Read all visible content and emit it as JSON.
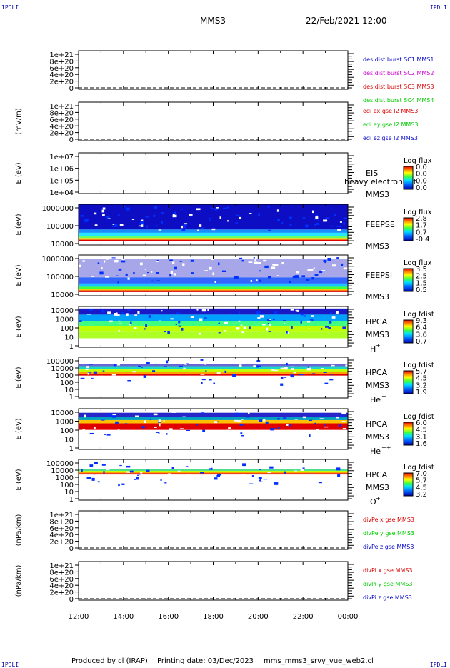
{
  "header": {
    "corner_label": "IPDLI",
    "title": "MMS3",
    "datetime": "22/Feb/2021 12:00"
  },
  "footer": {
    "produced_by": "Produced by cl (IRAP)",
    "printing_date": "Printing date: 03/Dec/2023",
    "script_name": "mms_mms3_srvy_vue_web2.cl"
  },
  "time_axis": {
    "ticks": [
      "12:00",
      "14:00",
      "16:00",
      "18:00",
      "20:00",
      "22:00",
      "00:00"
    ]
  },
  "colors": {
    "red": "#dd0000",
    "magenta": "#cc00cc",
    "green": "#00cc00",
    "blue": "#0000cc",
    "dark_blue": "#00008b"
  },
  "chart_data": [
    {
      "type": "line",
      "ylabel": "",
      "yticks": [
        "1e+21",
        "8e+20",
        "6e+20",
        "4e+20",
        "2e+20",
        "0"
      ],
      "legend": [
        {
          "text": "des dist burst SC1 MMS1",
          "color": "#0000cc"
        },
        {
          "text": "des dist burst SC2 MMS2",
          "color": "#cc00cc"
        },
        {
          "text": "des dist burst SC3 MMS3",
          "color": "#dd0000"
        },
        {
          "text": "des dist burst SC4 MMS4",
          "color": "#00cc00"
        }
      ]
    },
    {
      "type": "line",
      "ylabel": "(mV/m)",
      "yticks": [
        "1e+21",
        "8e+20",
        "6e+20",
        "4e+20",
        "2e+20",
        "0"
      ],
      "legend": [
        {
          "text": "edi ex gse l2 MMS3",
          "color": "#dd0000"
        },
        {
          "text": "edi ey gse l2 MMS3",
          "color": "#00cc00"
        },
        {
          "text": "edi ez gse l2 MMS3",
          "color": "#0000cc"
        }
      ]
    },
    {
      "type": "heatmap",
      "ylabel": "E (eV)",
      "yticks": [
        "1e+07",
        "1e+06",
        "1e+05",
        "1e+04"
      ],
      "instrument": "EIS",
      "overlay": "heavy electron tof",
      "spacecraft": "MMS3",
      "colorbar": {
        "title": "Log flux",
        "ticks": [
          "0.0",
          "0.0",
          "0.0",
          "0.0"
        ]
      }
    },
    {
      "type": "heatmap",
      "ylabel": "E (eV)",
      "yticks": [
        "1000000",
        "100000",
        "10000"
      ],
      "instrument": "FEEPSE",
      "spacecraft": "MMS3",
      "colorbar": {
        "title": "Log flux",
        "ticks": [
          "2.8",
          "1.7",
          "0.7",
          "-0.4"
        ]
      }
    },
    {
      "type": "heatmap",
      "ylabel": "E (eV)",
      "yticks": [
        "1000000",
        "100000",
        "10000"
      ],
      "instrument": "FEEPSI",
      "spacecraft": "MMS3",
      "colorbar": {
        "title": "Log flux",
        "ticks": [
          "3.5",
          "2.5",
          "1.5",
          "0.5"
        ]
      }
    },
    {
      "type": "heatmap",
      "ylabel": "E (eV)",
      "yticks": [
        "10000",
        "1000",
        "100",
        "10",
        "1"
      ],
      "instrument": "HPCA",
      "spacecraft": "MMS3",
      "species": "H",
      "species_sup": "+",
      "colorbar": {
        "title": "Log fdist",
        "ticks": [
          "9.3",
          "6.4",
          "3.6",
          "0.7"
        ]
      }
    },
    {
      "type": "heatmap",
      "ylabel": "E (eV)",
      "yticks": [
        "100000",
        "10000",
        "1000",
        "100",
        "10",
        "1"
      ],
      "instrument": "HPCA",
      "spacecraft": "MMS3",
      "species": "He",
      "species_sup": "+",
      "colorbar": {
        "title": "Log fdist",
        "ticks": [
          "5.7",
          "4.5",
          "3.2",
          "1.9"
        ]
      }
    },
    {
      "type": "heatmap",
      "ylabel": "E (eV)",
      "yticks": [
        "10000",
        "1000",
        "100",
        "10",
        "1"
      ],
      "instrument": "HPCA",
      "spacecraft": "MMS3",
      "species": "He",
      "species_sup": "++",
      "colorbar": {
        "title": "Log fdist",
        "ticks": [
          "6.0",
          "4.5",
          "3.1",
          "1.6"
        ]
      }
    },
    {
      "type": "heatmap",
      "ylabel": "E (eV)",
      "yticks": [
        "100000",
        "10000",
        "1000",
        "100",
        "10",
        "1"
      ],
      "instrument": "HPCA",
      "spacecraft": "MMS3",
      "species": "O",
      "species_sup": "+",
      "colorbar": {
        "title": "Log fdist",
        "ticks": [
          "7.0",
          "5.7",
          "4.5",
          "3.2"
        ]
      }
    },
    {
      "type": "line",
      "ylabel": "(nPa/km)",
      "yticks": [
        "1e+21",
        "8e+20",
        "6e+20",
        "4e+20",
        "2e+20",
        "0"
      ],
      "legend": [
        {
          "text": "divPe x gse MMS3",
          "color": "#dd0000"
        },
        {
          "text": "divPe y gse MMS3",
          "color": "#00cc00"
        },
        {
          "text": "divPe z gse MMS3",
          "color": "#0000cc"
        }
      ]
    },
    {
      "type": "line",
      "ylabel": "(nPa/km)",
      "yticks": [
        "1e+21",
        "8e+20",
        "6e+20",
        "4e+20",
        "2e+20",
        "0"
      ],
      "legend": [
        {
          "text": "divPi x gse MMS3",
          "color": "#dd0000"
        },
        {
          "text": "divPi y gse MMS3",
          "color": "#00cc00"
        },
        {
          "text": "divPi z gse MMS3",
          "color": "#0000cc"
        }
      ]
    }
  ]
}
